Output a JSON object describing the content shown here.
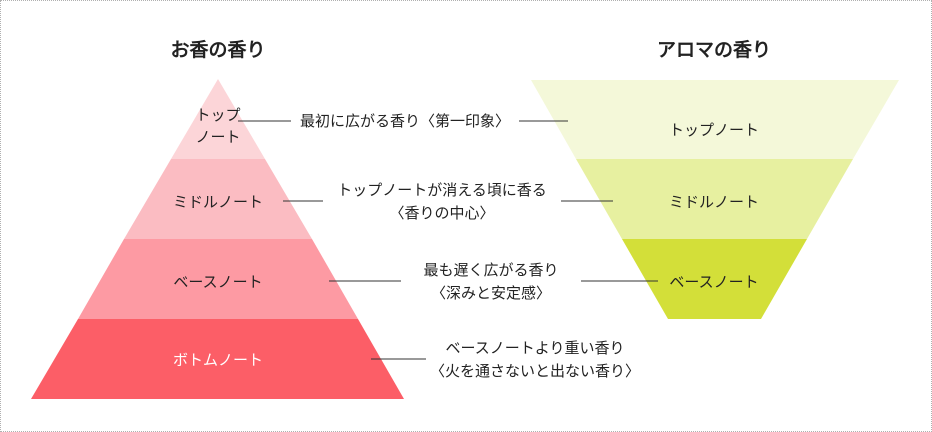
{
  "left_title": "お香の香り",
  "right_title": "アロマの香り",
  "incense": {
    "top": {
      "line1": "トップ",
      "line2": "ノート",
      "color": "#fcd5d8"
    },
    "middle": {
      "label": "ミドルノート",
      "color": "#fbbcc2"
    },
    "base": {
      "label": "ベースノート",
      "color": "#fd9aa3"
    },
    "bottom": {
      "label": "ボトムノート",
      "color": "#fc5e67"
    }
  },
  "aroma": {
    "top": {
      "label": "トップノート",
      "color": "#f4f8d9"
    },
    "middle": {
      "label": "ミドルノート",
      "color": "#e7f0a0"
    },
    "base": {
      "label": "ベースノート",
      "color": "#d3df39"
    }
  },
  "descriptions": {
    "top": {
      "line1": "最初に広がる香り〈第一印象〉"
    },
    "middle": {
      "line1": "トップノートが消える頃に香る",
      "line2": "〈香りの中心〉"
    },
    "base": {
      "line1": "最も遅く広がる香り",
      "line2": "〈深みと安定感〉"
    },
    "bottom": {
      "line1": "ベースノートより重い香り",
      "line2": "〈火を通さないと出ない香り〉"
    }
  }
}
